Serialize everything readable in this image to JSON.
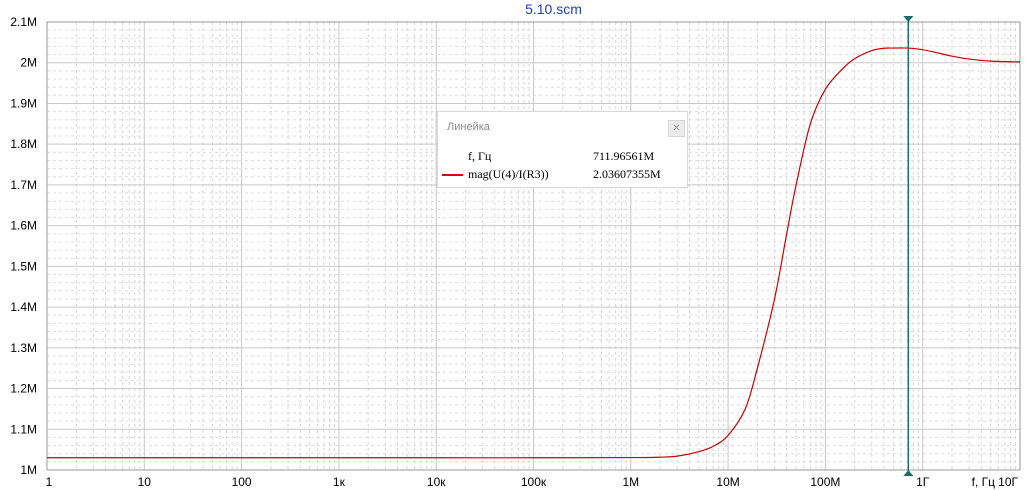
{
  "title": "5.10.scm",
  "chart_data": {
    "type": "line",
    "x_scale": "log",
    "xlim": [
      1,
      10000000000
    ],
    "ylim": [
      1000000,
      2100000
    ],
    "x_ticks": [
      {
        "v": 1,
        "label": "1"
      },
      {
        "v": 10,
        "label": "10"
      },
      {
        "v": 100,
        "label": "100"
      },
      {
        "v": 1000,
        "label": "1к"
      },
      {
        "v": 10000,
        "label": "10к"
      },
      {
        "v": 100000,
        "label": "100к"
      },
      {
        "v": 1000000,
        "label": "1М"
      },
      {
        "v": 10000000,
        "label": "10М"
      },
      {
        "v": 100000000,
        "label": "100М"
      },
      {
        "v": 1000000000,
        "label": "1Г"
      },
      {
        "v": 10000000000,
        "label": "10Г"
      }
    ],
    "x_axis_label": "f, Гц",
    "y_ticks": [
      {
        "v": 1000000,
        "label": "1M"
      },
      {
        "v": 1100000,
        "label": "1.1M"
      },
      {
        "v": 1200000,
        "label": "1.2M"
      },
      {
        "v": 1300000,
        "label": "1.3M"
      },
      {
        "v": 1400000,
        "label": "1.4M"
      },
      {
        "v": 1500000,
        "label": "1.5M"
      },
      {
        "v": 1600000,
        "label": "1.6M"
      },
      {
        "v": 1700000,
        "label": "1.7M"
      },
      {
        "v": 1800000,
        "label": "1.8M"
      },
      {
        "v": 1900000,
        "label": "1.9M"
      },
      {
        "v": 2000000,
        "label": "2M"
      },
      {
        "v": 2100000,
        "label": "2.1M"
      }
    ],
    "grid": true,
    "series": [
      {
        "name": "mag(U(4)/I(R3))",
        "color": "#cc0000",
        "x": [
          1,
          10,
          100,
          1000,
          10000,
          100000,
          1000000,
          2000000,
          3000000,
          5000000,
          7000000,
          10000000,
          15000000,
          20000000,
          30000000,
          40000000,
          50000000,
          70000000,
          100000000,
          150000000,
          200000000,
          300000000,
          400000000,
          500000000,
          712000000,
          1000000000,
          1500000000,
          2000000000,
          3000000000,
          5000000000,
          10000000000
        ],
        "y": [
          1030000,
          1030000,
          1030000,
          1030000,
          1030000,
          1030000,
          1030500,
          1031500,
          1034000,
          1045000,
          1058000,
          1085000,
          1150000,
          1250000,
          1420000,
          1580000,
          1700000,
          1850000,
          1935000,
          1985000,
          2010000,
          2030000,
          2035500,
          2036000,
          2036073,
          2032000,
          2023000,
          2016000,
          2009000,
          2004000,
          2002000
        ]
      }
    ],
    "cursor": {
      "x": 711965610,
      "marker_color": "#1b6b6b"
    }
  },
  "ruler": {
    "title": "Линейка",
    "close_icon": "close-icon",
    "rows": [
      {
        "label": "f, Гц",
        "value": "711.96561M"
      },
      {
        "label": "mag(U(4)/I(R3))",
        "value": "2.03607355M",
        "color": "#e00000"
      }
    ]
  }
}
